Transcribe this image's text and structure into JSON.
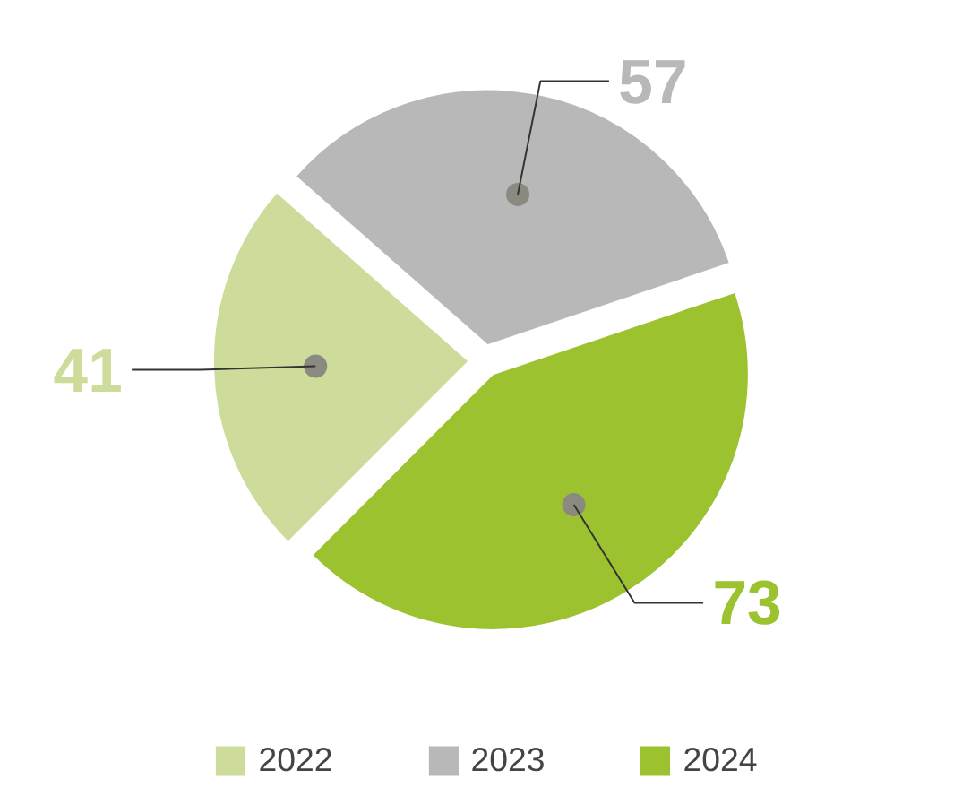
{
  "chart_data": {
    "type": "pie",
    "categories": [
      "2022",
      "2023",
      "2024"
    ],
    "values": [
      41,
      57,
      73
    ],
    "colors": [
      "#cddc9b",
      "#b8b8b8",
      "#9dc230"
    ],
    "data_labels": true,
    "legend": "bottom"
  }
}
